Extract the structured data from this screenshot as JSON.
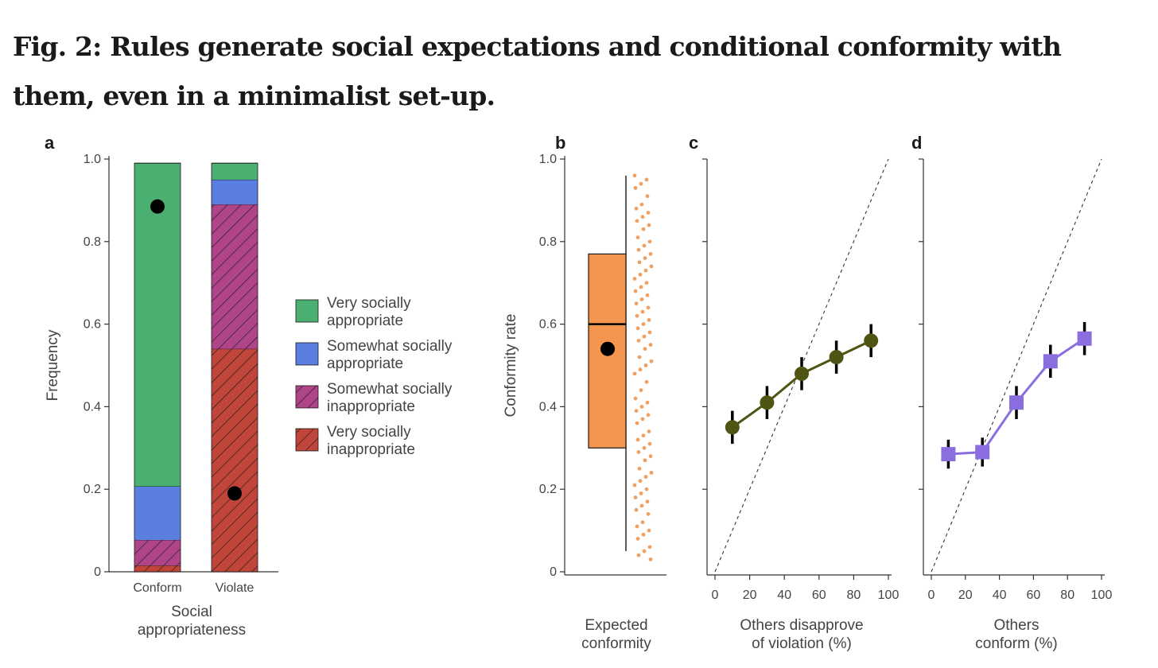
{
  "figure": {
    "title": "Fig. 2: Rules generate social expectations and conditional conformity with them, even in a minimalist set-up."
  },
  "colors": {
    "very_appropriate": "#4caf72",
    "somewhat_appropriate": "#5b7fe0",
    "somewhat_inappropriate": "#b04488",
    "very_inappropriate": "#c0453a",
    "box_orange": "#f5964f",
    "dot_orange": "#f0a060",
    "series_c": "#4f5413",
    "series_d": "#8a6ee0",
    "marker_black": "#000000"
  },
  "chart_data": [
    {
      "panel": "a",
      "type": "bar",
      "stacked": true,
      "xlabel": "Social appropriateness",
      "ylabel": "Frequency",
      "ylim": [
        0,
        1.0
      ],
      "yticks": [
        0,
        0.2,
        0.4,
        0.6,
        0.8,
        1.0
      ],
      "ytick_labels": [
        "0",
        "0.2",
        "0.4",
        "0.6",
        "0.8",
        "1.0"
      ],
      "categories": [
        "Conform",
        "Violate"
      ],
      "series": [
        {
          "name": "Very socially inappropriate",
          "values": [
            0.015,
            0.54
          ],
          "color": "#c0453a",
          "hatch": true
        },
        {
          "name": "Somewhat socially inappropriate",
          "values": [
            0.062,
            0.35
          ],
          "color": "#b04488",
          "hatch": true
        },
        {
          "name": "Somewhat socially appropriate",
          "values": [
            0.13,
            0.06
          ],
          "color": "#5b7fe0",
          "hatch": false
        },
        {
          "name": "Very socially appropriate",
          "values": [
            0.783,
            0.04
          ],
          "color": "#4caf72",
          "hatch": false
        }
      ],
      "mean_markers": [
        0.885,
        0.19
      ],
      "legend": {
        "placement": "right",
        "entries": [
          {
            "lines": [
              "Very socially",
              "appropriate"
            ],
            "color": "#4caf72",
            "hatch": false
          },
          {
            "lines": [
              "Somewhat socially",
              "appropriate"
            ],
            "color": "#5b7fe0",
            "hatch": false
          },
          {
            "lines": [
              "Somewhat socially",
              "inappropriate"
            ],
            "color": "#b04488",
            "hatch": true
          },
          {
            "lines": [
              "Very socially",
              "inappropriate"
            ],
            "color": "#c0453a",
            "hatch": true
          }
        ]
      }
    },
    {
      "panel": "b",
      "type": "box",
      "ylabel": "Conformity rate",
      "xlabel_lines": [
        "Expected",
        "conformity"
      ],
      "ylim": [
        0,
        1.0
      ],
      "yticks": [
        0,
        0.2,
        0.4,
        0.6,
        0.8,
        1.0
      ],
      "ytick_labels": [
        "0",
        "0.2",
        "0.4",
        "0.6",
        "0.8",
        "1.0"
      ],
      "box": {
        "q1": 0.3,
        "median": 0.6,
        "q3": 0.77,
        "whisker_low": 0.05,
        "whisker_high": 0.96,
        "mean": 0.54
      },
      "points": [
        0.96,
        0.95,
        0.94,
        0.93,
        0.91,
        0.89,
        0.88,
        0.87,
        0.86,
        0.85,
        0.84,
        0.83,
        0.81,
        0.8,
        0.79,
        0.78,
        0.77,
        0.76,
        0.75,
        0.74,
        0.73,
        0.72,
        0.71,
        0.7,
        0.69,
        0.68,
        0.67,
        0.66,
        0.65,
        0.64,
        0.63,
        0.62,
        0.61,
        0.6,
        0.59,
        0.58,
        0.57,
        0.56,
        0.55,
        0.54,
        0.52,
        0.51,
        0.5,
        0.49,
        0.48,
        0.46,
        0.44,
        0.42,
        0.41,
        0.4,
        0.39,
        0.38,
        0.37,
        0.36,
        0.34,
        0.33,
        0.32,
        0.31,
        0.3,
        0.29,
        0.28,
        0.27,
        0.25,
        0.24,
        0.23,
        0.22,
        0.21,
        0.2,
        0.19,
        0.18,
        0.17,
        0.16,
        0.15,
        0.14,
        0.12,
        0.11,
        0.1,
        0.09,
        0.08,
        0.06,
        0.05,
        0.04,
        0.03
      ]
    },
    {
      "panel": "c",
      "type": "line",
      "xlabel_lines": [
        "Others disapprove",
        "of violation (%)"
      ],
      "xlim": [
        0,
        100
      ],
      "xticks": [
        0,
        20,
        40,
        60,
        80,
        100
      ],
      "ylim": [
        0,
        1.0
      ],
      "x": [
        10,
        30,
        50,
        70,
        90
      ],
      "series": [
        {
          "y": [
            0.35,
            0.41,
            0.48,
            0.52,
            0.56
          ],
          "err": [
            0.04,
            0.04,
            0.04,
            0.04,
            0.04
          ],
          "marker": "circle",
          "color": "#4f5413"
        }
      ],
      "reference_line": {
        "style": "dashed",
        "x": [
          0,
          100
        ],
        "y": [
          0,
          1.0
        ]
      }
    },
    {
      "panel": "d",
      "type": "line",
      "xlabel_lines": [
        "Others",
        "conform (%)"
      ],
      "xlim": [
        0,
        100
      ],
      "xticks": [
        0,
        20,
        40,
        60,
        80,
        100
      ],
      "ylim": [
        0,
        1.0
      ],
      "x": [
        10,
        30,
        50,
        70,
        90
      ],
      "series": [
        {
          "y": [
            0.285,
            0.29,
            0.41,
            0.51,
            0.565
          ],
          "err": [
            0.035,
            0.035,
            0.04,
            0.04,
            0.04
          ],
          "marker": "square",
          "color": "#8a6ee0"
        }
      ],
      "reference_line": {
        "style": "dashed",
        "x": [
          0,
          100
        ],
        "y": [
          0,
          1.0
        ]
      }
    }
  ]
}
